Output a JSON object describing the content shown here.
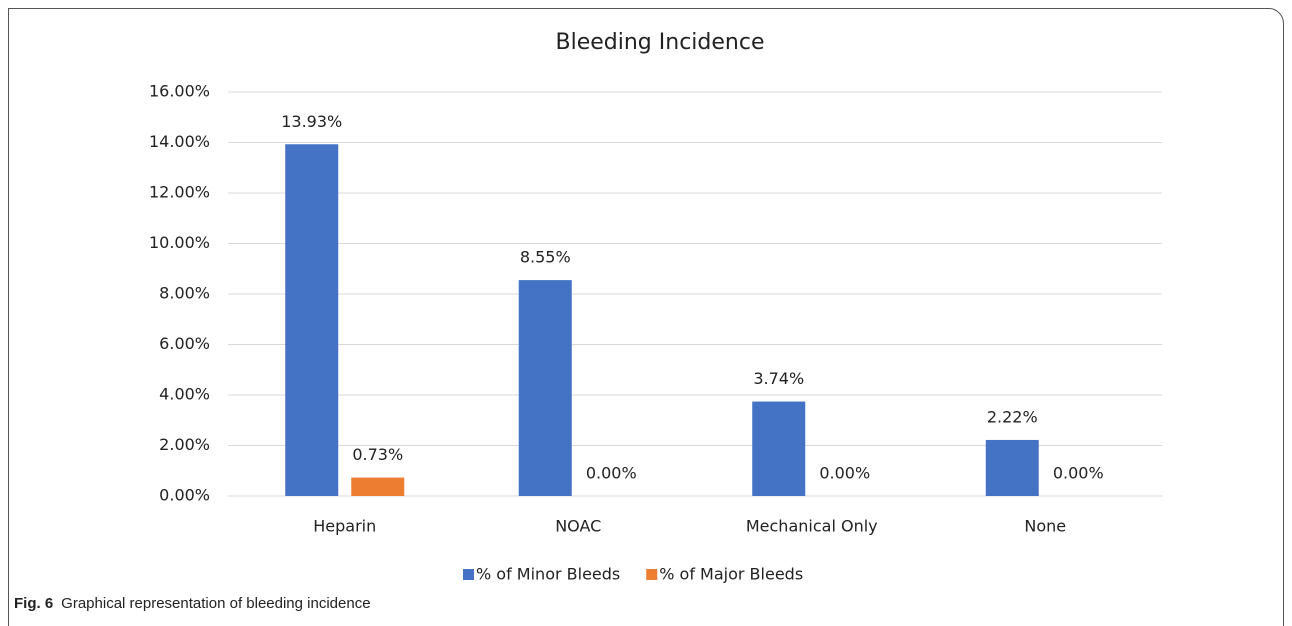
{
  "chart_data": {
    "type": "bar",
    "title": "Bleeding Incidence",
    "categories": [
      "Heparin",
      "NOAC",
      "Mechanical Only",
      "None"
    ],
    "series": [
      {
        "name": "% of Minor Bleeds",
        "color": "#4472c4",
        "values": [
          13.93,
          8.55,
          3.74,
          2.22
        ],
        "value_labels": [
          "13.93%",
          "8.55%",
          "3.74%",
          "2.22%"
        ]
      },
      {
        "name": "% of Major Bleeds",
        "color": "#ed7d31",
        "values": [
          0.73,
          0,
          0,
          0
        ],
        "value_labels": [
          "0.73%",
          "0.00%",
          "0.00%",
          "0.00%"
        ]
      }
    ],
    "ylim": [
      0,
      16
    ],
    "yticks": [
      {
        "value": 0,
        "label": "0.00%"
      },
      {
        "value": 2,
        "label": "2.00%"
      },
      {
        "value": 4,
        "label": "4.00%"
      },
      {
        "value": 6,
        "label": "6.00%"
      },
      {
        "value": 8,
        "label": "8.00%"
      },
      {
        "value": 10,
        "label": "10.00%"
      },
      {
        "value": 12,
        "label": "12.00%"
      },
      {
        "value": 14,
        "label": "14.00%"
      },
      {
        "value": 16,
        "label": "16.00%"
      }
    ],
    "grid": true,
    "legend": "bottom"
  },
  "caption": {
    "label": "Fig. 6",
    "text": "Graphical representation of bleeding incidence"
  }
}
